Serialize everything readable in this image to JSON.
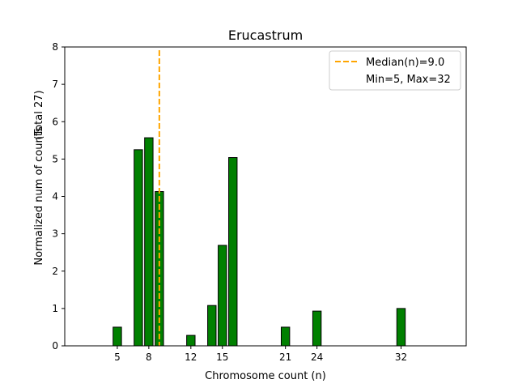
{
  "chart_data": {
    "type": "bar",
    "title": "Erucastrum",
    "xlabel": "Chromosome count (n)",
    "ylabel": "Normalized num of counts",
    "ylabel2": "(Total 27)",
    "x": [
      5,
      7,
      8,
      9,
      12,
      14,
      15,
      16,
      21,
      24,
      32
    ],
    "values": [
      0.5,
      5.25,
      5.57,
      4.13,
      0.28,
      1.08,
      2.69,
      5.04,
      0.5,
      0.93,
      1.0
    ],
    "xlim": [
      0,
      38.2
    ],
    "ylim": [
      0,
      8
    ],
    "xticks": [
      5,
      8,
      12,
      15,
      21,
      24,
      32
    ],
    "yticks": [
      0,
      1,
      2,
      3,
      4,
      5,
      6,
      7,
      8
    ],
    "median": 9.0,
    "legend": {
      "placement": "top-right",
      "entries": [
        "Median(n)=9.0",
        "Min=5, Max=32"
      ]
    },
    "grid": false,
    "colors": {
      "bar": "#008000",
      "bar_edge": "#000000",
      "median": "#FFA500"
    }
  }
}
